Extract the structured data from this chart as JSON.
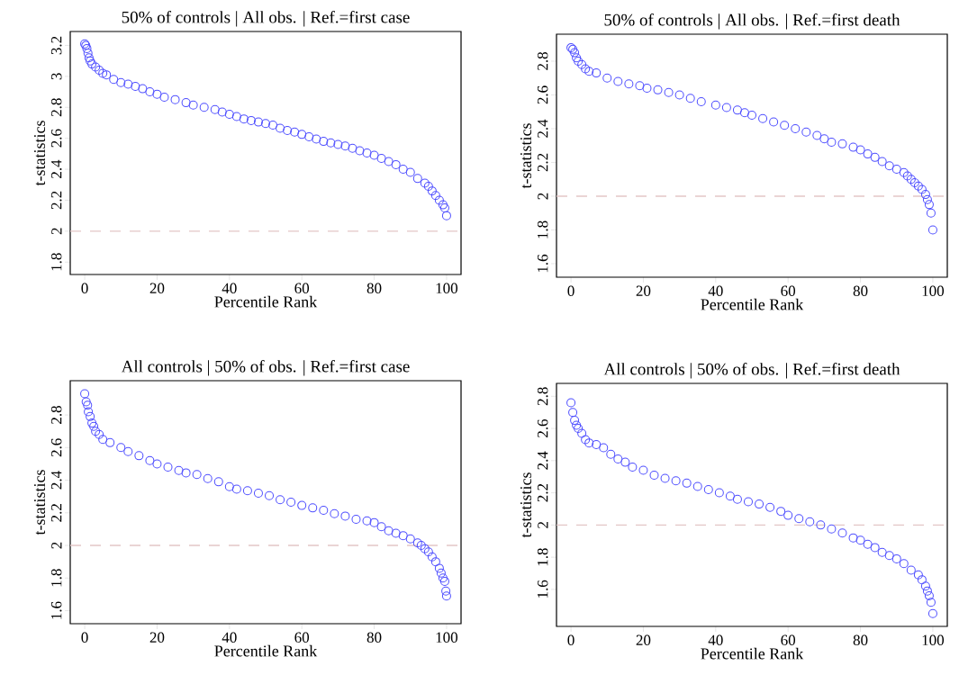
{
  "chart_data": [
    {
      "type": "scatter",
      "title": "50% of controls | All obs. | Ref.=first case",
      "xlabel": "Percentile Rank",
      "ylabel": "t-statistics",
      "color": "#4d4dff",
      "marker": "circle",
      "xlim": [
        -4,
        104
      ],
      "ylim": [
        1.72,
        3.29
      ],
      "xticks": [
        0,
        20,
        40,
        60,
        80,
        100
      ],
      "yticks": [
        1.8,
        2,
        2.2,
        2.4,
        2.6,
        2.8,
        3,
        3.2
      ],
      "x": [
        0,
        0.3,
        0.6,
        0.9,
        1.2,
        1.5,
        2,
        3,
        4,
        5,
        6,
        8,
        10,
        12,
        14,
        16,
        18,
        20,
        22,
        25,
        28,
        30,
        33,
        36,
        38,
        40,
        42,
        44,
        46,
        48,
        50,
        52,
        54,
        56,
        58,
        60,
        62,
        64,
        66,
        68,
        70,
        72,
        74,
        76,
        78,
        80,
        82,
        84,
        86,
        88,
        90,
        92,
        94,
        95,
        96,
        97,
        98,
        99,
        99.5,
        100
      ],
      "values": [
        3.21,
        3.2,
        3.18,
        3.15,
        3.12,
        3.1,
        3.08,
        3.06,
        3.04,
        3.02,
        3.01,
        2.98,
        2.96,
        2.95,
        2.935,
        2.92,
        2.9,
        2.885,
        2.865,
        2.85,
        2.83,
        2.815,
        2.8,
        2.785,
        2.77,
        2.755,
        2.74,
        2.725,
        2.715,
        2.705,
        2.695,
        2.685,
        2.665,
        2.65,
        2.64,
        2.625,
        2.61,
        2.595,
        2.58,
        2.57,
        2.56,
        2.55,
        2.535,
        2.52,
        2.505,
        2.49,
        2.47,
        2.45,
        2.43,
        2.4,
        2.38,
        2.34,
        2.31,
        2.29,
        2.26,
        2.23,
        2.2,
        2.17,
        2.15,
        2.1
      ],
      "ref_lines": [
        {
          "axis": "y",
          "value": 2,
          "color": "#e3c6c6",
          "line_style": "dashed"
        }
      ]
    },
    {
      "type": "scatter",
      "title": "50% of controls | All obs. | Ref.=first death",
      "xlabel": "Percentile Rank",
      "ylabel": "t-statistics",
      "color": "#4d4dff",
      "marker": "circle",
      "xlim": [
        -4,
        104
      ],
      "ylim": [
        1.52,
        2.96
      ],
      "xticks": [
        0,
        20,
        40,
        60,
        80,
        100
      ],
      "yticks": [
        1.6,
        1.8,
        2,
        2.2,
        2.4,
        2.6,
        2.8
      ],
      "x": [
        0,
        0.5,
        1,
        1.5,
        2,
        3,
        4,
        5,
        7,
        10,
        13,
        16,
        19,
        21,
        24,
        27,
        30,
        33,
        36,
        40,
        43,
        46,
        48,
        50,
        53,
        56,
        59,
        62,
        65,
        68,
        70,
        72,
        75,
        78,
        80,
        82,
        84,
        86,
        88,
        90,
        92,
        93,
        94,
        95,
        96,
        97,
        98,
        98.5,
        99,
        99.5,
        100
      ],
      "values": [
        2.88,
        2.87,
        2.85,
        2.82,
        2.8,
        2.78,
        2.755,
        2.74,
        2.73,
        2.7,
        2.68,
        2.665,
        2.655,
        2.64,
        2.63,
        2.615,
        2.6,
        2.58,
        2.56,
        2.54,
        2.525,
        2.51,
        2.495,
        2.48,
        2.46,
        2.44,
        2.42,
        2.4,
        2.38,
        2.36,
        2.34,
        2.32,
        2.31,
        2.29,
        2.275,
        2.25,
        2.23,
        2.205,
        2.18,
        2.16,
        2.14,
        2.12,
        2.1,
        2.08,
        2.06,
        2.04,
        2.01,
        1.98,
        1.95,
        1.9,
        1.8
      ],
      "ref_lines": [
        {
          "axis": "y",
          "value": 2,
          "color": "#e3c6c6",
          "line_style": "dashed"
        }
      ]
    },
    {
      "type": "scatter",
      "title": "All controls | 50% of obs. | Ref.=first case",
      "xlabel": "Percentile Rank",
      "ylabel": "t-statistics",
      "color": "#4d4dff",
      "marker": "circle",
      "xlim": [
        -4,
        104
      ],
      "ylim": [
        1.52,
        3.01
      ],
      "xticks": [
        0,
        20,
        40,
        60,
        80,
        100
      ],
      "yticks": [
        1.6,
        1.8,
        2,
        2.2,
        2.4,
        2.6,
        2.8
      ],
      "x": [
        0,
        0.4,
        0.8,
        1,
        1.5,
        2,
        2.5,
        3,
        4,
        5,
        7,
        10,
        12,
        15,
        18,
        20,
        23,
        26,
        28,
        31,
        34,
        37,
        40,
        42,
        45,
        48,
        51,
        54,
        57,
        60,
        63,
        66,
        69,
        72,
        75,
        78,
        80,
        82,
        84,
        86,
        88,
        90,
        92,
        93,
        94,
        95,
        96,
        97,
        98,
        98.5,
        99,
        99.5,
        99.8,
        100
      ],
      "values": [
        2.93,
        2.88,
        2.86,
        2.82,
        2.79,
        2.75,
        2.73,
        2.7,
        2.68,
        2.65,
        2.63,
        2.6,
        2.575,
        2.55,
        2.52,
        2.5,
        2.48,
        2.46,
        2.445,
        2.435,
        2.41,
        2.39,
        2.36,
        2.345,
        2.335,
        2.32,
        2.305,
        2.28,
        2.265,
        2.245,
        2.23,
        2.215,
        2.195,
        2.18,
        2.16,
        2.15,
        2.14,
        2.115,
        2.09,
        2.075,
        2.06,
        2.04,
        2.015,
        2.0,
        1.98,
        1.96,
        1.93,
        1.9,
        1.86,
        1.83,
        1.8,
        1.78,
        1.72,
        1.69
      ],
      "ref_lines": [
        {
          "axis": "y",
          "value": 2,
          "color": "#e3c6c6",
          "line_style": "dashed"
        }
      ]
    },
    {
      "type": "scatter",
      "title": "All controls | 50% of obs. | Ref.=first death",
      "xlabel": "Percentile Rank",
      "ylabel": "t-statistics",
      "color": "#4d4dff",
      "marker": "circle",
      "xlim": [
        -4,
        104
      ],
      "ylim": [
        1.37,
        2.88
      ],
      "xticks": [
        0,
        20,
        40,
        60,
        80,
        100
      ],
      "yticks": [
        1.6,
        1.8,
        2,
        2.2,
        2.4,
        2.6,
        2.8
      ],
      "x": [
        0,
        0.5,
        1,
        1.5,
        2,
        3,
        4,
        5,
        7,
        9,
        11,
        13,
        15,
        17,
        20,
        23,
        26,
        29,
        32,
        35,
        38,
        41,
        44,
        46,
        49,
        52,
        55,
        58,
        60,
        63,
        66,
        69,
        72,
        75,
        78,
        80,
        82,
        84,
        86,
        88,
        90,
        92,
        94,
        96,
        97,
        98,
        98.5,
        99,
        99.5,
        100
      ],
      "values": [
        2.76,
        2.7,
        2.65,
        2.62,
        2.6,
        2.57,
        2.53,
        2.51,
        2.5,
        2.48,
        2.44,
        2.41,
        2.39,
        2.36,
        2.34,
        2.31,
        2.29,
        2.275,
        2.26,
        2.24,
        2.22,
        2.2,
        2.18,
        2.16,
        2.145,
        2.13,
        2.11,
        2.085,
        2.06,
        2.04,
        2.02,
        2.0,
        1.975,
        1.95,
        1.92,
        1.905,
        1.88,
        1.86,
        1.83,
        1.81,
        1.79,
        1.76,
        1.72,
        1.69,
        1.66,
        1.62,
        1.59,
        1.56,
        1.52,
        1.45
      ],
      "ref_lines": [
        {
          "axis": "y",
          "value": 2,
          "color": "#e3c6c6",
          "line_style": "dashed"
        }
      ]
    }
  ]
}
